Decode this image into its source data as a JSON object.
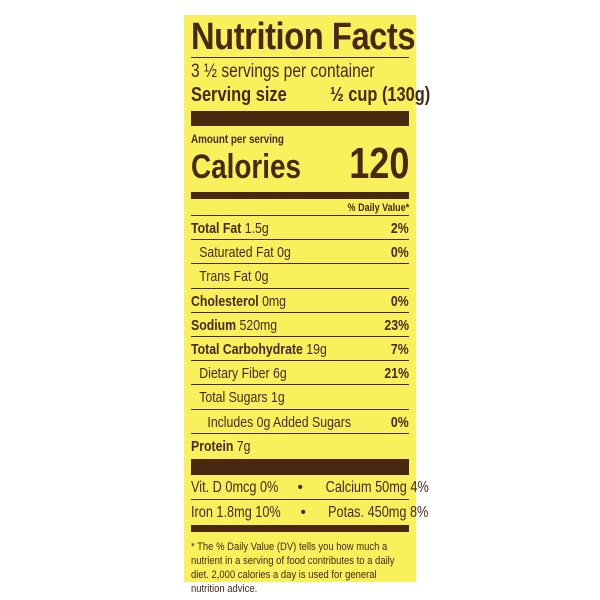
{
  "title": "Nutrition Facts",
  "servings_per_container": "3 ½ servings per container",
  "serving_size": {
    "label": "Serving size",
    "value": "½ cup (130g)"
  },
  "amount_per_serving": "Amount per serving",
  "calories": {
    "label": "Calories",
    "value": "120"
  },
  "daily_value_header": "% Daily Value*",
  "nutrients": [
    {
      "name": "Total Fat",
      "amount": "1.5g",
      "dv": "2%",
      "bold": true,
      "indent": 0
    },
    {
      "name": "Saturated Fat",
      "amount": "0g",
      "dv": "0%",
      "bold": false,
      "indent": 1
    },
    {
      "name": "Trans Fat",
      "amount": "0g",
      "dv": "",
      "bold": false,
      "indent": 1
    },
    {
      "name": "Cholesterol",
      "amount": "0mg",
      "dv": "0%",
      "bold": true,
      "indent": 0
    },
    {
      "name": "Sodium",
      "amount": "520mg",
      "dv": "23%",
      "bold": true,
      "indent": 0
    },
    {
      "name": "Total Carbohydrate",
      "amount": "19g",
      "dv": "7%",
      "bold": true,
      "indent": 0
    },
    {
      "name": "Dietary Fiber",
      "amount": "6g",
      "dv": "21%",
      "bold": false,
      "indent": 1
    },
    {
      "name": "Total Sugars",
      "amount": "1g",
      "dv": "",
      "bold": false,
      "indent": 1
    },
    {
      "name": "Includes 0g Added Sugars",
      "amount": "",
      "dv": "0%",
      "bold": false,
      "indent": 2
    },
    {
      "name": "Protein",
      "amount": "7g",
      "dv": "",
      "bold": true,
      "indent": 0
    }
  ],
  "vitamins": [
    {
      "left": "Vit. D  0mcg  0%",
      "sep": "•",
      "right": "Calcium  50mg  4%"
    },
    {
      "left": "Iron  1.8mg  10%",
      "sep": "•",
      "right": "Potas.  450mg  8%"
    }
  ],
  "footnote": "* The % Daily Value (DV) tells you how much a nutrient in a serving of food contributes to a daily diet. 2,000 calories a day is used for general nutrition advice.",
  "colors": {
    "background": "#f8f15c",
    "text": "#4a2810"
  }
}
